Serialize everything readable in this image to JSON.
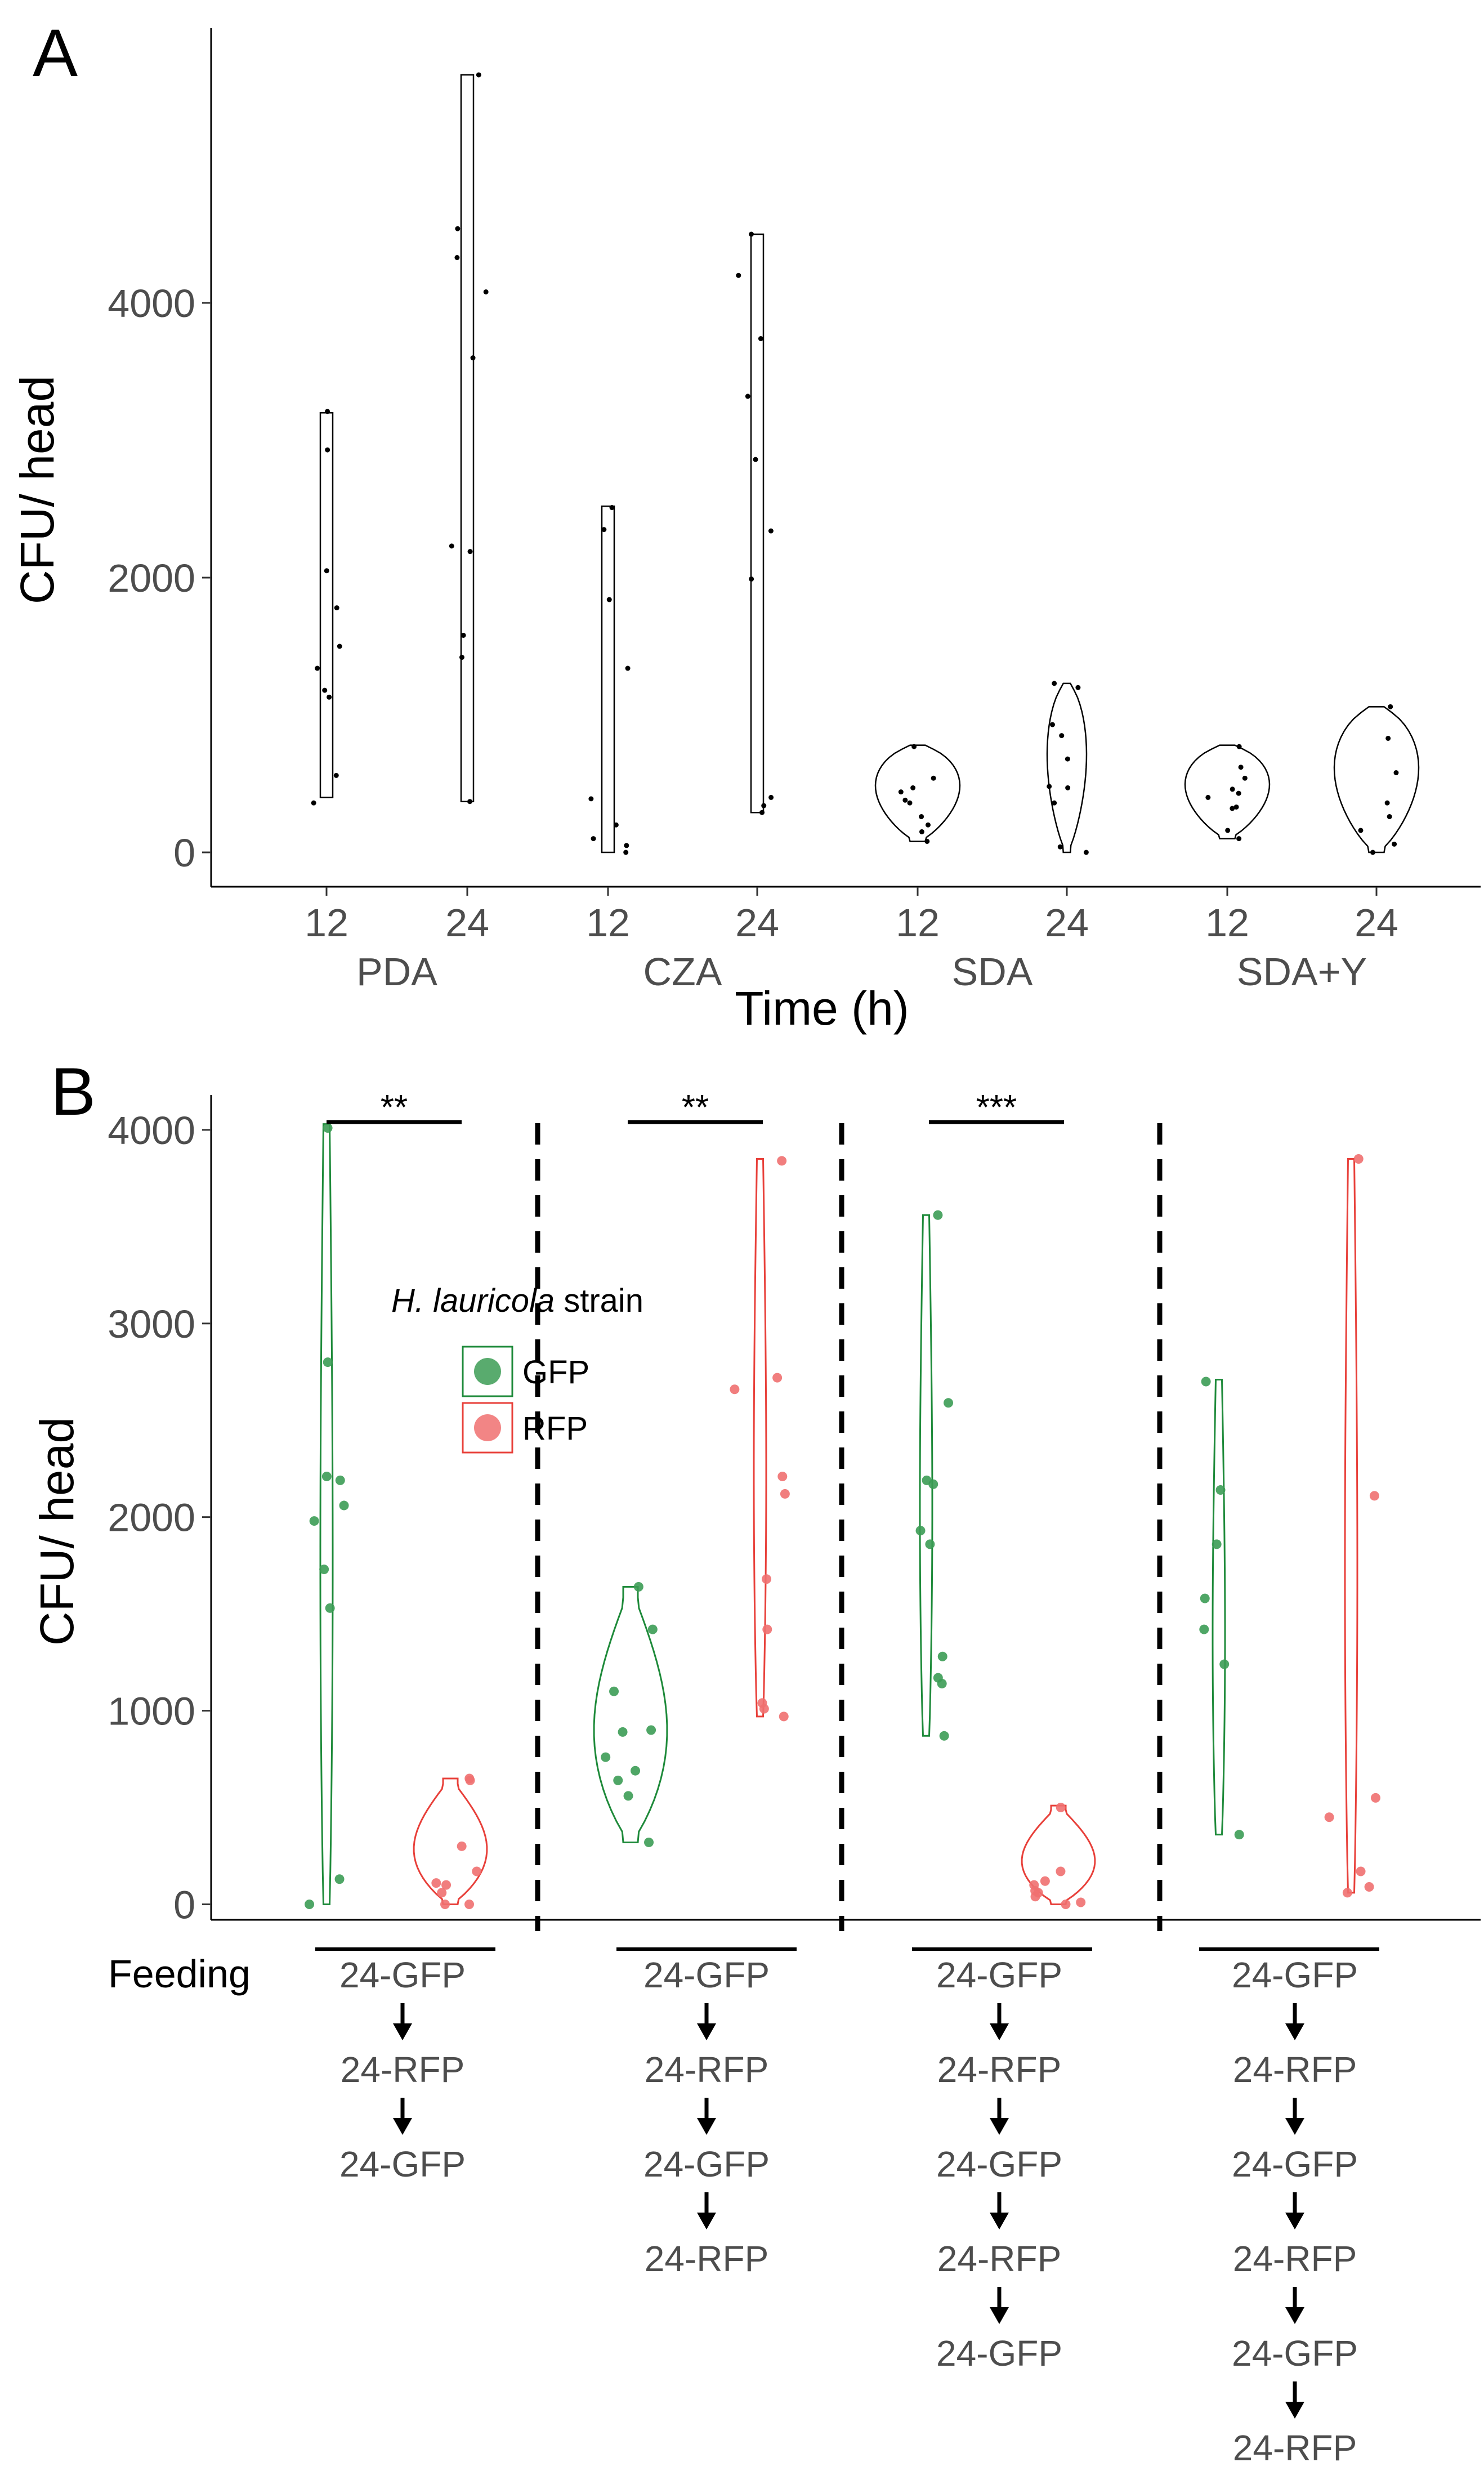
{
  "chart_data": [
    {
      "panel": "A",
      "type": "violin",
      "ylabel": "CFU/ head",
      "xlabel": "Time (h)",
      "ylim": [
        -250,
        6000
      ],
      "yticks": [
        0,
        2000,
        4000
      ],
      "groups": [
        {
          "name": "PDA",
          "times": [
            {
              "tick": "12",
              "range": [
                400,
                3200
              ],
              "points": [
                360,
                560,
                1130,
                1180,
                1340,
                1500,
                1780,
                2050,
                2930,
                3210
              ]
            },
            {
              "tick": "24",
              "range": [
                370,
                5660
              ],
              "points": [
                370,
                1420,
                1580,
                2190,
                2230,
                3600,
                4080,
                4330,
                4540,
                5660
              ]
            }
          ]
        },
        {
          "name": "CZA",
          "times": [
            {
              "tick": "12",
              "range": [
                0,
                2520
              ],
              "points": [
                0,
                50,
                100,
                200,
                390,
                1340,
                1840,
                2350,
                2510
              ]
            },
            {
              "tick": "24",
              "range": [
                290,
                4500
              ],
              "points": [
                290,
                340,
                400,
                1990,
                2340,
                2860,
                3320,
                3740,
                4200,
                4500
              ]
            }
          ]
        },
        {
          "name": "SDA",
          "times": [
            {
              "tick": "12",
              "range": [
                80,
                780
              ],
              "points": [
                80,
                150,
                200,
                260,
                360,
                380,
                440,
                470,
                540,
                770
              ]
            },
            {
              "tick": "24",
              "range": [
                0,
                1230
              ],
              "points": [
                0,
                40,
                360,
                470,
                480,
                680,
                850,
                930,
                1200,
                1230
              ]
            }
          ]
        },
        {
          "name": "SDA+Y",
          "times": [
            {
              "tick": "12",
              "range": [
                100,
                780
              ],
              "points": [
                100,
                160,
                320,
                330,
                400,
                430,
                460,
                540,
                620,
                770
              ]
            },
            {
              "tick": "24",
              "range": [
                0,
                1060
              ],
              "points": [
                0,
                60,
                160,
                260,
                360,
                580,
                830,
                1060
              ]
            }
          ]
        }
      ]
    },
    {
      "panel": "B",
      "type": "violin",
      "ylabel": "CFU/ head",
      "ylim": [
        -80,
        4180
      ],
      "yticks": [
        0,
        1000,
        2000,
        3000,
        4000
      ],
      "legend": {
        "title_italic": "H. lauricola",
        "title_rest": " strain",
        "entries": [
          "GFP",
          "RFP"
        ]
      },
      "colors": {
        "GFP": "#1e8a3a",
        "RFP": "#e8403a",
        "GFP_fill": "#3c9c55",
        "RFP_fill": "#f07070"
      },
      "groups": [
        {
          "sig": "**",
          "GFP": {
            "range": [
              0,
              4030
            ],
            "points": [
              0,
              130,
              1530,
              1730,
              1980,
              2060,
              2190,
              2210,
              2800,
              4010
            ]
          },
          "RFP": {
            "range": [
              0,
              650
            ],
            "points": [
              0,
              0,
              60,
              100,
              110,
              170,
              300,
              640,
              650
            ]
          },
          "sequence": [
            "24-GFP",
            "24-RFP",
            "24-GFP"
          ]
        },
        {
          "sig": "**",
          "GFP": {
            "range": [
              320,
              1640
            ],
            "points": [
              320,
              560,
              640,
              690,
              760,
              890,
              900,
              1100,
              1420,
              1640
            ]
          },
          "RFP": {
            "range": [
              970,
              3850
            ],
            "points": [
              970,
              1010,
              1040,
              1420,
              1680,
              2120,
              2210,
              2660,
              2720,
              3840
            ]
          },
          "sequence": [
            "24-GFP",
            "24-RFP",
            "24-GFP",
            "24-RFP"
          ]
        },
        {
          "sig": "***",
          "GFP": {
            "range": [
              870,
              3560
            ],
            "points": [
              870,
              1140,
              1170,
              1280,
              1860,
              1930,
              2170,
              2190,
              2590,
              3560
            ]
          },
          "RFP": {
            "range": [
              0,
              510
            ],
            "points": [
              0,
              10,
              40,
              60,
              70,
              100,
              120,
              170,
              500
            ]
          },
          "sequence": [
            "24-GFP",
            "24-RFP",
            "24-GFP",
            "24-RFP",
            "24-GFP"
          ]
        },
        {
          "sig": "",
          "GFP": {
            "range": [
              360,
              2710
            ],
            "points": [
              360,
              1240,
              1420,
              1580,
              1860,
              2140,
              2700
            ]
          },
          "RFP": {
            "range": [
              60,
              3850
            ],
            "points": [
              60,
              90,
              170,
              450,
              550,
              2110,
              3850
            ]
          },
          "sequence": [
            "24-GFP",
            "24-RFP",
            "24-GFP",
            "24-RFP",
            "24-GFP",
            "24-RFP"
          ]
        }
      ],
      "feeding_label": "Feeding"
    }
  ]
}
